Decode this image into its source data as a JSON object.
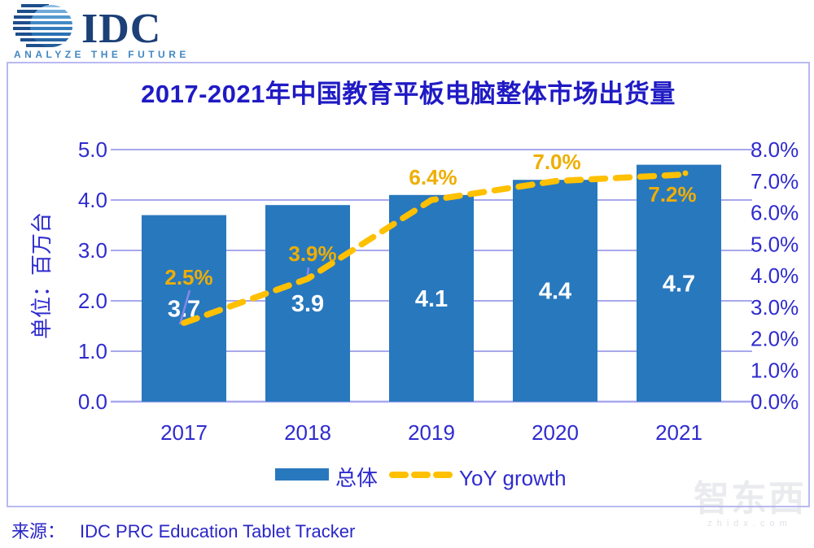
{
  "logo": {
    "brand": "IDC",
    "tagline": "ANALYZE THE FUTURE"
  },
  "chart_data": {
    "type": "bar",
    "title": "2017-2021年中国教育平板电脑整体市场出货量",
    "categories": [
      "2017",
      "2018",
      "2019",
      "2020",
      "2021"
    ],
    "series": [
      {
        "name": "总体",
        "type": "bar",
        "axis": "left",
        "values": [
          3.7,
          3.9,
          4.1,
          4.4,
          4.7
        ],
        "labels": [
          "3.7",
          "3.9",
          "4.1",
          "4.4",
          "4.7"
        ],
        "color": "#2878be"
      },
      {
        "name": "YoY growth",
        "type": "line",
        "axis": "right",
        "values": [
          2.5,
          3.9,
          6.4,
          7.0,
          7.2
        ],
        "labels": [
          "2.5%",
          "3.9%",
          "6.4%",
          "7.0%",
          "7.2%"
        ],
        "color": "#ffc000",
        "label_color": "#efae00"
      }
    ],
    "left_axis": {
      "label": "单位：百万台",
      "min": 0,
      "max": 5,
      "step": 1,
      "ticks": [
        "5.0",
        "4.0",
        "3.0",
        "2.0",
        "1.0",
        "0.0"
      ]
    },
    "right_axis": {
      "min": 0,
      "max": 8,
      "step": 1,
      "ticks": [
        "8.0%",
        "7.0%",
        "6.0%",
        "5.0%",
        "4.0%",
        "3.0%",
        "2.0%",
        "1.0%",
        "0.0%"
      ]
    },
    "legend": [
      {
        "label": "总体",
        "swatch": "bar"
      },
      {
        "label": "YoY growth",
        "swatch": "dash"
      }
    ],
    "grid": true,
    "legend_position": "bottom"
  },
  "source": {
    "prefix": "来源：",
    "text": "IDC PRC Education Tablet Tracker"
  },
  "watermark": {
    "text": "智东西",
    "sub": "zhidx.com"
  },
  "colors": {
    "bar": "#2878be",
    "line": "#ffc000",
    "line_label": "#efae00",
    "axis_text": "#2f2bce",
    "title_text": "#1f1ac4",
    "grid": "#a8a8ec",
    "frame": "#b9b9f2",
    "leader": "#8787ea",
    "bar_label": "#ffffff",
    "logo_navy": "#1c4077",
    "logo_blue": "#4287c0"
  }
}
